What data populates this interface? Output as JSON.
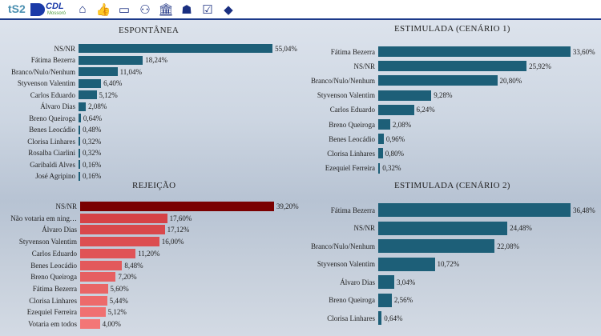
{
  "header": {
    "logo_ts2": "tS2",
    "logo_cdl": "CDL",
    "logo_cdl_sub": "Mossoró",
    "nav_icons": [
      "home-icon",
      "thumbs-icon",
      "chat-icon",
      "people-icon",
      "institution-icon",
      "map-rn-icon",
      "ballot-icon",
      "map-brazil-icon"
    ]
  },
  "colors": {
    "teal": "#1d5f78",
    "rej_dark": "#7a0000",
    "rej_mid": "#d9474a",
    "rej_light": "#f07070"
  },
  "chart_data": [
    {
      "type": "bar",
      "orientation": "horizontal",
      "title": "ESPONTÂNEA",
      "categories": [
        "NS/NR",
        "Fátima Bezerra",
        "Branco/Nulo/Nenhum",
        "Styvenson Valentim",
        "Carlos Eduardo",
        "Álvaro Dias",
        "Breno Queiroga",
        "Benes Leocádio",
        "Clorisa Linhares",
        "Rosalba Ciarlini",
        "Garibaldi Alves",
        "José Agripino"
      ],
      "values": [
        55.04,
        18.24,
        11.04,
        6.4,
        5.12,
        2.08,
        0.64,
        0.48,
        0.32,
        0.32,
        0.16,
        0.16
      ],
      "labels": [
        "55,04%",
        "18,24%",
        "11,04%",
        "6,40%",
        "5,12%",
        "2,08%",
        "0,64%",
        "0,48%",
        "0,32%",
        "0,32%",
        "0,16%",
        "0,16%"
      ]
    },
    {
      "type": "bar",
      "orientation": "horizontal",
      "title": "REJEIÇÃO",
      "categories": [
        "NS/NR",
        "Não votaria em ning…",
        "Álvaro Dias",
        "Styvenson Valentim",
        "Carlos Eduardo",
        "Benes Leocádio",
        "Breno Queiroga",
        "Fátima Bezerra",
        "Clorisa Linhares",
        "Ezequiel Ferreira",
        "Votaria em todos"
      ],
      "values": [
        39.2,
        17.6,
        17.12,
        16.0,
        11.2,
        8.48,
        7.2,
        5.6,
        5.44,
        5.12,
        4.0
      ],
      "labels": [
        "39,20%",
        "17,60%",
        "17,12%",
        "16,00%",
        "11,20%",
        "8,48%",
        "7,20%",
        "5,60%",
        "5,44%",
        "5,12%",
        "4,00%"
      ]
    },
    {
      "type": "bar",
      "orientation": "horizontal",
      "title": "ESTIMULADA (CENÁRIO 1)",
      "categories": [
        "Fátima Bezerra",
        "NS/NR",
        "Branco/Nulo/Nenhum",
        "Styvenson Valentim",
        "Carlos Eduardo",
        "Breno Queiroga",
        "Benes Leocádio",
        "Clorisa Linhares",
        "Ezequiel Ferreira"
      ],
      "values": [
        33.6,
        25.92,
        20.8,
        9.28,
        6.24,
        2.08,
        0.96,
        0.8,
        0.32
      ],
      "labels": [
        "33,60%",
        "25,92%",
        "20,80%",
        "9,28%",
        "6,24%",
        "2,08%",
        "0,96%",
        "0,80%",
        "0,32%"
      ]
    },
    {
      "type": "bar",
      "orientation": "horizontal",
      "title": "ESTIMULADA (CENÁRIO 2)",
      "categories": [
        "Fátima Bezerra",
        "NS/NR",
        "Branco/Nulo/Nenhum",
        "Styvenson Valentim",
        "Álvaro Dias",
        "Breno Queiroga",
        "Clorisa Linhares"
      ],
      "values": [
        36.48,
        24.48,
        22.08,
        10.72,
        3.04,
        2.56,
        0.64
      ],
      "labels": [
        "36,48%",
        "24,48%",
        "22,08%",
        "10,72%",
        "3,04%",
        "2,56%",
        "0,64%"
      ]
    }
  ]
}
